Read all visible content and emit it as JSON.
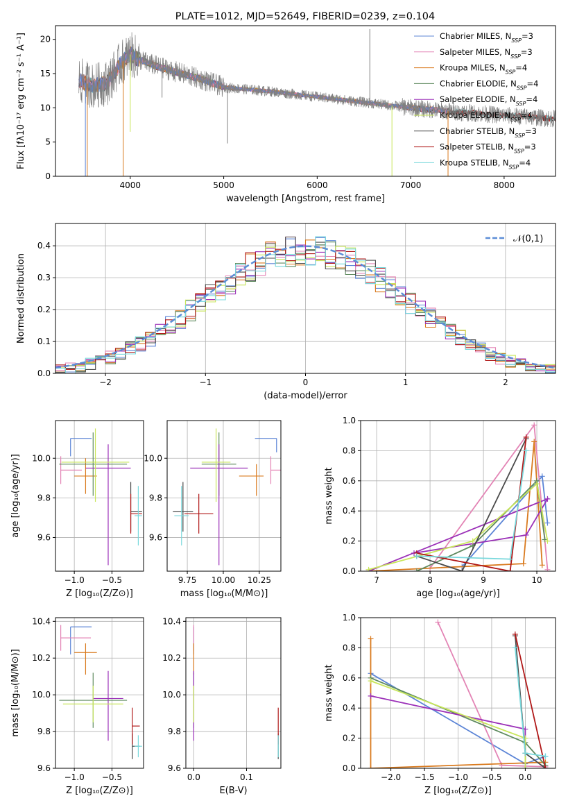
{
  "figure_title": "PLATE=1012, MJD=52649, FIBERID=0239, z=0.104",
  "colors": {
    "Chabrier MILES": "#5b84d6",
    "Salpeter MILES": "#e384b5",
    "Kroupa MILES": "#d97a1e",
    "Chabrier ELODIE": "#5e8a5e",
    "Salpeter ELODIE": "#9b30b8",
    "Kroupa ELODIE": "#c8e65a",
    "Chabrier STELIB": "#4a4a4a",
    "Salpeter STELIB": "#b01818",
    "Kroupa STELIB": "#78d8dc",
    "data": "#808080",
    "gauss": "#5b8dd6"
  },
  "chart_data": [
    {
      "type": "line",
      "title": "PLATE=1012, MJD=52649, FIBERID=0239, z=0.104",
      "xlabel": "wavelength [Angstrom, rest frame]",
      "ylabel": "Flux [fλ10⁻¹⁷ erg cm⁻² s⁻¹ A⁻¹]",
      "xlim": [
        3200,
        8550
      ],
      "ylim": [
        0,
        22
      ],
      "xticks": [
        4000,
        5000,
        6000,
        7000,
        8000
      ],
      "yticks": [
        0,
        5,
        10,
        15,
        20
      ],
      "grid": false,
      "legend": "top-right",
      "legend_entries": [
        "Chabrier MILES, N_SSP=3",
        "Salpeter MILES, N_SSP=3",
        "Kroupa MILES, N_SSP=4",
        "Chabrier ELODIE, N_SSP=4",
        "Salpeter ELODIE, N_SSP=4",
        "Kroupa ELODIE, N_SSP=4",
        "Chabrier STELIB, N_SSP=3",
        "Salpeter STELIB, N_SSP=3",
        "Kroupa STELIB, N_SSP=4"
      ],
      "continuum": {
        "x": [
          3450,
          3600,
          3750,
          3900,
          4000,
          4100,
          4300,
          4500,
          4800,
          5000,
          5500,
          6000,
          6500,
          7000,
          7400,
          8000,
          8550
        ],
        "y": [
          14.0,
          13.2,
          13.6,
          16.5,
          17.8,
          17.0,
          16.0,
          15.2,
          14.0,
          13.0,
          12.4,
          11.6,
          10.8,
          10.0,
          9.5,
          8.9,
          8.4
        ]
      },
      "data_range": [
        3450,
        8550
      ],
      "miles_range": [
        3450,
        7400
      ],
      "elodie_range": [
        3900,
        6800
      ],
      "stelib_range": [
        3450,
        8550
      ],
      "spikes": [
        {
          "x": 3520,
          "y": 0,
          "s": "Chabrier MILES"
        },
        {
          "x": 3540,
          "y": 0,
          "s": "Kroupa MILES"
        },
        {
          "x": 3925,
          "y": 0,
          "s": "Kroupa MILES"
        },
        {
          "x": 4000,
          "y": 6.5,
          "s": "Kroupa ELODIE"
        },
        {
          "x": 4340,
          "y": 11.5,
          "s": "data"
        },
        {
          "x": 5040,
          "y": 4.8,
          "s": "data"
        },
        {
          "x": 6563,
          "y": 21.5,
          "s": "data"
        },
        {
          "x": 6800,
          "y": 0,
          "s": "Kroupa ELODIE"
        },
        {
          "x": 7400,
          "y": 0,
          "s": "Kroupa MILES"
        }
      ]
    },
    {
      "type": "bar",
      "xlabel": "(data-model)/error",
      "ylabel": "Normed distribution",
      "xlim": [
        -2.5,
        2.5
      ],
      "ylim": [
        0,
        0.47
      ],
      "xticks": [
        -2,
        -1,
        0,
        1,
        2
      ],
      "yticks": [
        0.0,
        0.1,
        0.2,
        0.3,
        0.4
      ],
      "grid": true,
      "legend": "top-right",
      "gauss_label": "𝒩(0,1)",
      "bin_width": 0.1
    },
    {
      "type": "scatter",
      "xlabel": "Z [log₁₀(Z/Z⊙)]",
      "ylabel": "age  [log₁₀(age/yr)]",
      "xlim": [
        -1.25,
        -0.08
      ],
      "ylim": [
        9.43,
        10.19
      ],
      "xticks": [
        -1.0,
        -0.5
      ],
      "xtick_labels": [
        "−1.0",
        "−0.5"
      ],
      "yticks": [
        9.6,
        9.8,
        10.0
      ],
      "ytick_labels": [
        "9.6",
        "9.8",
        "10.0"
      ],
      "grid": true,
      "points": [
        {
          "s": "Chabrier MILES",
          "x": -1.05,
          "xerr": [
            0.0,
            0.28
          ],
          "y": 10.1,
          "yerr": [
            0.09,
            0.0
          ]
        },
        {
          "s": "Salpeter MILES",
          "x": -1.18,
          "xerr": [
            0.0,
            0.28
          ],
          "y": 9.94,
          "yerr": [
            0.07,
            0.07
          ]
        },
        {
          "s": "Kroupa MILES",
          "x": -0.85,
          "xerr": [
            0.15,
            0.15
          ],
          "y": 9.91,
          "yerr": [
            0.09,
            0.09
          ]
        },
        {
          "s": "Chabrier ELODIE",
          "x": -0.75,
          "xerr": [
            0.45,
            0.45
          ],
          "y": 9.97,
          "yerr": [
            0.16,
            0.16
          ]
        },
        {
          "s": "Salpeter ELODIE",
          "x": -0.55,
          "xerr": [
            0.3,
            0.3
          ],
          "y": 9.95,
          "yerr": [
            0.49,
            0.12
          ]
        },
        {
          "s": "Kroupa ELODIE",
          "x": -0.72,
          "xerr": [
            0.45,
            0.45
          ],
          "y": 9.98,
          "yerr": [
            0.2,
            0.17
          ]
        },
        {
          "s": "Chabrier STELIB",
          "x": -0.25,
          "xerr": [
            0.0,
            0.15
          ],
          "y": 9.73,
          "yerr": [
            0.1,
            0.15
          ]
        },
        {
          "s": "Salpeter STELIB",
          "x": -0.25,
          "xerr": [
            0.0,
            0.15
          ],
          "y": 9.72,
          "yerr": [
            0.1,
            0.1
          ]
        },
        {
          "s": "Kroupa STELIB",
          "x": -0.15,
          "xerr": [
            0.05,
            0.05
          ],
          "y": 9.71,
          "yerr": [
            0.15,
            0.15
          ]
        }
      ]
    },
    {
      "type": "scatter",
      "xlabel": "mass [log₁₀(M/M⊙)]",
      "ylabel": "",
      "xlim": [
        9.61,
        10.4
      ],
      "ylim": [
        9.43,
        10.19
      ],
      "xticks": [
        9.75,
        10.0,
        10.25
      ],
      "xtick_labels": [
        "9.75",
        "10.00",
        "10.25"
      ],
      "yticks": [
        9.6,
        9.8,
        10.0
      ],
      "ytick_labels": [
        "9.6",
        "9.8",
        "10.0"
      ],
      "grid": true,
      "points": [
        {
          "s": "Chabrier MILES",
          "x": 10.37,
          "xerr": [
            0.15,
            0.0
          ],
          "y": 10.1,
          "yerr": [
            0.07,
            0.0
          ]
        },
        {
          "s": "Salpeter MILES",
          "x": 10.33,
          "xerr": [
            0.0,
            0.07
          ],
          "y": 9.94,
          "yerr": [
            0.07,
            0.07
          ]
        },
        {
          "s": "Kroupa MILES",
          "x": 10.23,
          "xerr": [
            0.12,
            0.05
          ],
          "y": 9.91,
          "yerr": [
            0.1,
            0.06
          ]
        },
        {
          "s": "Chabrier ELODIE",
          "x": 9.97,
          "xerr": [
            0.12,
            0.12
          ],
          "y": 9.97,
          "yerr": [
            0.16,
            0.16
          ]
        },
        {
          "s": "Salpeter ELODIE",
          "x": 9.97,
          "xerr": [
            0.2,
            0.2
          ],
          "y": 9.95,
          "yerr": [
            0.49,
            0.12
          ]
        },
        {
          "s": "Kroupa ELODIE",
          "x": 9.95,
          "xerr": [
            0.1,
            0.1
          ],
          "y": 9.98,
          "yerr": [
            0.2,
            0.17
          ]
        },
        {
          "s": "Chabrier STELIB",
          "x": 9.72,
          "xerr": [
            0.07,
            0.07
          ],
          "y": 9.73,
          "yerr": [
            0.1,
            0.15
          ]
        },
        {
          "s": "Salpeter STELIB",
          "x": 9.83,
          "xerr": [
            0.1,
            0.1
          ],
          "y": 9.72,
          "yerr": [
            0.1,
            0.1
          ]
        },
        {
          "s": "Kroupa STELIB",
          "x": 9.71,
          "xerr": [
            0.05,
            0.05
          ],
          "y": 9.71,
          "yerr": [
            0.15,
            0.15
          ]
        }
      ]
    },
    {
      "type": "line",
      "xlabel": "age  [log₁₀(age/yr)]",
      "ylabel": "mass weight",
      "xlim": [
        6.7,
        10.35
      ],
      "ylim": [
        0,
        1.0
      ],
      "xticks": [
        7,
        8,
        9,
        10
      ],
      "xtick_labels": [
        "7",
        "8",
        "9",
        "10"
      ],
      "yticks": [
        0,
        0.2,
        0.4,
        0.6,
        0.8,
        1.0
      ],
      "ytick_labels": [
        "0.0",
        "0.2",
        "0.4",
        "0.6",
        "0.8",
        "1.0"
      ],
      "grid": true,
      "series": [
        {
          "s": "Chabrier MILES",
          "x": [
            8.6,
            10.1,
            10.2
          ],
          "y": [
            0.03,
            0.63,
            0.32
          ]
        },
        {
          "s": "Salpeter MILES",
          "x": [
            8.0,
            9.95,
            10.2
          ],
          "y": [
            0.02,
            0.97,
            0.01
          ]
        },
        {
          "s": "Kroupa MILES",
          "x": [
            6.85,
            9.75,
            9.95,
            10.1
          ],
          "y": [
            0.0,
            0.05,
            0.86,
            0.04
          ]
        },
        {
          "s": "Chabrier ELODIE",
          "x": [
            7.75,
            8.8,
            10.0,
            10.15
          ],
          "y": [
            0.0,
            0.17,
            0.6,
            0.21
          ]
        },
        {
          "s": "Salpeter ELODIE",
          "x": [
            7.7,
            9.8,
            10.2,
            6.85
          ],
          "y": [
            0.12,
            0.24,
            0.48,
            0.0
          ]
        },
        {
          "s": "Kroupa ELODIE",
          "x": [
            6.85,
            8.8,
            10.0,
            10.2
          ],
          "y": [
            0.01,
            0.2,
            0.58,
            0.2
          ]
        },
        {
          "s": "Chabrier STELIB",
          "x": [
            7.75,
            8.6,
            9.8
          ],
          "y": [
            0.1,
            0.0,
            0.88
          ]
        },
        {
          "s": "Salpeter STELIB",
          "x": [
            7.75,
            9.5,
            9.8
          ],
          "y": [
            0.12,
            0.0,
            0.89
          ]
        },
        {
          "s": "Kroupa STELIB",
          "x": [
            7.75,
            9.5,
            9.8
          ],
          "y": [
            0.1,
            0.08,
            0.8
          ]
        }
      ]
    },
    {
      "type": "scatter",
      "xlabel": "Z [log₁₀(Z/Z⊙)]",
      "ylabel": "mass [log₁₀(M/M⊙)]",
      "xlim": [
        -1.25,
        -0.08
      ],
      "ylim": [
        9.6,
        10.42
      ],
      "xticks": [
        -1.0,
        -0.5
      ],
      "xtick_labels": [
        "−1.0",
        "−0.5"
      ],
      "yticks": [
        9.6,
        9.8,
        10.0,
        10.2,
        10.4
      ],
      "ytick_labels": [
        "9.6",
        "9.8",
        "10.0",
        "10.2",
        "10.4"
      ],
      "grid": true,
      "points": [
        {
          "s": "Chabrier MILES",
          "x": -1.05,
          "xerr": [
            0.0,
            0.28
          ],
          "y": 10.37,
          "yerr": [
            0.15,
            0.0
          ]
        },
        {
          "s": "Salpeter MILES",
          "x": -1.18,
          "xerr": [
            0.0,
            0.4
          ],
          "y": 10.31,
          "yerr": [
            0.07,
            0.07
          ]
        },
        {
          "s": "Kroupa MILES",
          "x": -0.85,
          "xerr": [
            0.15,
            0.15
          ],
          "y": 10.23,
          "yerr": [
            0.12,
            0.05
          ]
        },
        {
          "s": "Chabrier ELODIE",
          "x": -0.75,
          "xerr": [
            0.45,
            0.45
          ],
          "y": 9.97,
          "yerr": [
            0.15,
            0.15
          ]
        },
        {
          "s": "Salpeter ELODIE",
          "x": -0.55,
          "xerr": [
            0.2,
            0.2
          ],
          "y": 9.98,
          "yerr": [
            0.23,
            0.15
          ]
        },
        {
          "s": "Kroupa ELODIE",
          "x": -0.75,
          "xerr": [
            0.4,
            0.4
          ],
          "y": 9.95,
          "yerr": [
            0.1,
            0.1
          ]
        },
        {
          "s": "Chabrier STELIB",
          "x": -0.23,
          "xerr": [
            0.0,
            0.1
          ],
          "y": 9.72,
          "yerr": [
            0.07,
            0.07
          ]
        },
        {
          "s": "Salpeter STELIB",
          "x": -0.23,
          "xerr": [
            0.0,
            0.1
          ],
          "y": 9.83,
          "yerr": [
            0.1,
            0.1
          ]
        },
        {
          "s": "Kroupa STELIB",
          "x": -0.15,
          "xerr": [
            0.05,
            0.05
          ],
          "y": 9.72,
          "yerr": [
            0.06,
            0.06
          ]
        }
      ]
    },
    {
      "type": "scatter",
      "xlabel": "E(B-V)",
      "ylabel": "",
      "xlim": [
        -0.015,
        0.165
      ],
      "ylim": [
        9.6,
        10.42
      ],
      "xticks": [
        0.0,
        0.1
      ],
      "xtick_labels": [
        "0.0",
        "0.1"
      ],
      "yticks": [
        9.6,
        9.8,
        10.0,
        10.2,
        10.4
      ],
      "ytick_labels": [
        "9.6",
        "9.8",
        "10.0",
        "10.2",
        "10.4"
      ],
      "grid": true,
      "points": [
        {
          "s": "Chabrier MILES",
          "x": 0.0,
          "xerr": [
            0,
            0
          ],
          "y": 10.37,
          "yerr": [
            0.15,
            0.0
          ]
        },
        {
          "s": "Salpeter MILES",
          "x": 0.0,
          "xerr": [
            0,
            0
          ],
          "y": 10.31,
          "yerr": [
            0.07,
            0.07
          ]
        },
        {
          "s": "Kroupa MILES",
          "x": 0.0,
          "xerr": [
            0,
            0
          ],
          "y": 10.23,
          "yerr": [
            0.12,
            0.05
          ]
        },
        {
          "s": "Chabrier ELODIE",
          "x": 0.0,
          "xerr": [
            0,
            0
          ],
          "y": 9.97,
          "yerr": [
            0.15,
            0.15
          ]
        },
        {
          "s": "Salpeter ELODIE",
          "x": 0.0,
          "xerr": [
            0,
            0
          ],
          "y": 9.98,
          "yerr": [
            0.23,
            0.15
          ]
        },
        {
          "s": "Kroupa ELODIE",
          "x": 0.0,
          "xerr": [
            0,
            0
          ],
          "y": 9.95,
          "yerr": [
            0.1,
            0.1
          ]
        },
        {
          "s": "Chabrier STELIB",
          "x": 0.16,
          "xerr": [
            0,
            0
          ],
          "y": 9.72,
          "yerr": [
            0.07,
            0.07
          ]
        },
        {
          "s": "Salpeter STELIB",
          "x": 0.16,
          "xerr": [
            0,
            0
          ],
          "y": 9.83,
          "yerr": [
            0.1,
            0.1
          ]
        },
        {
          "s": "Kroupa STELIB",
          "x": 0.16,
          "xerr": [
            0,
            0
          ],
          "y": 9.72,
          "yerr": [
            0.06,
            0.06
          ]
        }
      ]
    },
    {
      "type": "line",
      "xlabel": "Z [log₁₀(Z/Z⊙)]",
      "ylabel": "mass weight",
      "xlim": [
        -2.45,
        0.45
      ],
      "ylim": [
        0,
        1.0
      ],
      "xticks": [
        -2.0,
        -1.5,
        -1.0,
        -0.5,
        0.0
      ],
      "xtick_labels": [
        "−2.0",
        "−1.5",
        "−1.0",
        "−0.5",
        "0.0"
      ],
      "yticks": [
        0,
        0.2,
        0.4,
        0.6,
        0.8,
        1.0
      ],
      "ytick_labels": [
        "0.0",
        "0.2",
        "0.4",
        "0.6",
        "0.8",
        "1.0"
      ],
      "grid": true,
      "series": [
        {
          "s": "Chabrier MILES",
          "x": [
            -2.3,
            0.0,
            0.3
          ],
          "y": [
            0.63,
            0.03,
            0.08
          ]
        },
        {
          "s": "Salpeter MILES",
          "x": [
            -1.3,
            -0.35,
            0.3
          ],
          "y": [
            0.97,
            0.02,
            0.01
          ]
        },
        {
          "s": "Kroupa MILES",
          "x": [
            -2.3,
            -2.3,
            0.3
          ],
          "y": [
            0.86,
            0.0,
            0.04
          ]
        },
        {
          "s": "Chabrier ELODIE",
          "x": [
            -2.3,
            0.0,
            0.3
          ],
          "y": [
            0.6,
            0.17,
            0.02
          ]
        },
        {
          "s": "Salpeter ELODIE",
          "x": [
            -2.3,
            0.0,
            0.0
          ],
          "y": [
            0.48,
            0.26,
            0.0
          ]
        },
        {
          "s": "Kroupa ELODIE",
          "x": [
            -2.3,
            0.0,
            0.0
          ],
          "y": [
            0.58,
            0.2,
            0.0
          ]
        },
        {
          "s": "Chabrier STELIB",
          "x": [
            -0.15,
            0.0,
            0.3
          ],
          "y": [
            0.88,
            0.1,
            0.0
          ]
        },
        {
          "s": "Salpeter STELIB",
          "x": [
            -0.15,
            0.3
          ],
          "y": [
            0.89,
            0.0
          ]
        },
        {
          "s": "Kroupa STELIB",
          "x": [
            -0.15,
            0.0,
            0.3
          ],
          "y": [
            0.8,
            0.1,
            0.08
          ]
        }
      ]
    }
  ]
}
